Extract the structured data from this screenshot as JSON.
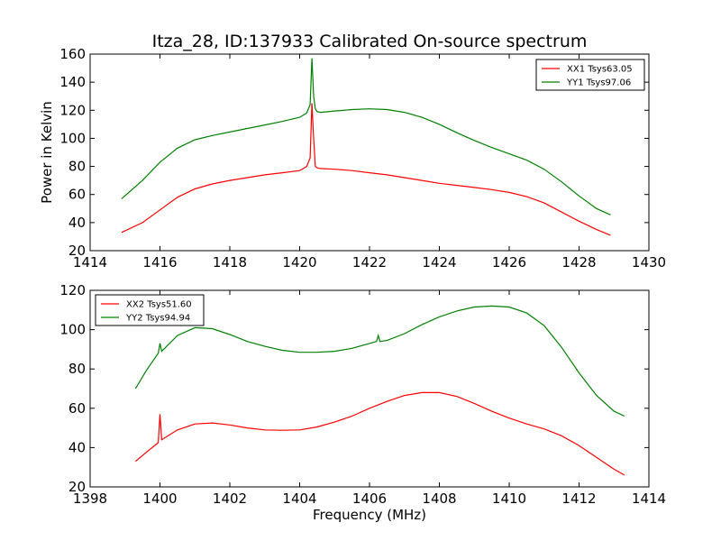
{
  "figure": {
    "title": "Itza_28, ID:137933 Calibrated On-source spectrum"
  },
  "chart_data": [
    {
      "type": "line",
      "title": "Itza_28, ID:137933 Calibrated On-source spectrum",
      "xlabel": "",
      "ylabel": "Power in Kelvin",
      "xlim": [
        1414,
        1430
      ],
      "ylim": [
        20,
        160
      ],
      "xticks": [
        1414,
        1416,
        1418,
        1420,
        1422,
        1424,
        1426,
        1428,
        1430
      ],
      "yticks": [
        20,
        40,
        60,
        80,
        100,
        120,
        140,
        160
      ],
      "xtick_labels": [
        "1414",
        "1416",
        "1418",
        "1420",
        "1422",
        "1424",
        "1426",
        "1428",
        "1430"
      ],
      "ytick_labels": [
        "20",
        "40",
        "60",
        "80",
        "100",
        "120",
        "140",
        "160"
      ],
      "grid": false,
      "legend_position": "top-right",
      "series": [
        {
          "name": "XX1 Tsys63.05",
          "color": "#ff0000",
          "x": [
            1414.9,
            1415.5,
            1416.0,
            1416.5,
            1417.0,
            1417.5,
            1418.0,
            1418.5,
            1419.0,
            1419.5,
            1420.0,
            1420.2,
            1420.3,
            1420.35,
            1420.4,
            1420.45,
            1420.5,
            1420.6,
            1421.0,
            1421.5,
            1422.0,
            1422.5,
            1423.0,
            1423.5,
            1424.0,
            1424.5,
            1425.0,
            1425.5,
            1426.0,
            1426.5,
            1427.0,
            1427.5,
            1428.0,
            1428.5,
            1428.9
          ],
          "y": [
            33,
            40,
            49,
            58,
            64,
            67.5,
            70,
            72,
            74,
            75.5,
            77,
            80,
            86,
            125,
            100,
            80,
            79,
            78.5,
            78,
            77,
            75.5,
            74,
            72,
            70,
            68,
            66.5,
            65,
            63.5,
            61.5,
            58.5,
            54,
            47.5,
            41,
            35,
            31
          ]
        },
        {
          "name": "YY1 Tsys97.06",
          "color": "#008000",
          "x": [
            1414.9,
            1415.5,
            1416.0,
            1416.5,
            1417.0,
            1417.5,
            1418.0,
            1418.5,
            1419.0,
            1419.5,
            1420.0,
            1420.2,
            1420.3,
            1420.35,
            1420.4,
            1420.45,
            1420.5,
            1420.6,
            1421.0,
            1421.5,
            1422.0,
            1422.5,
            1423.0,
            1423.5,
            1424.0,
            1424.5,
            1425.0,
            1425.5,
            1426.0,
            1426.5,
            1427.0,
            1427.5,
            1428.0,
            1428.5,
            1428.9
          ],
          "y": [
            57,
            70,
            83,
            93,
            99,
            102,
            104.5,
            107,
            109.5,
            112,
            115,
            118,
            124,
            157,
            130,
            121,
            119,
            118.5,
            119.5,
            120.5,
            121,
            120.5,
            118.5,
            115,
            110,
            104,
            98.5,
            93.5,
            89,
            84.5,
            78,
            69,
            59,
            50,
            45.5
          ]
        }
      ]
    },
    {
      "type": "line",
      "title": "",
      "xlabel": "Frequency (MHz)",
      "ylabel": "",
      "xlim": [
        1398,
        1414
      ],
      "ylim": [
        20,
        120
      ],
      "xticks": [
        1398,
        1400,
        1402,
        1404,
        1406,
        1408,
        1410,
        1412,
        1414
      ],
      "yticks": [
        20,
        40,
        60,
        80,
        100,
        120
      ],
      "xtick_labels": [
        "1398",
        "1400",
        "1402",
        "1404",
        "1406",
        "1408",
        "1410",
        "1412",
        "1414"
      ],
      "ytick_labels": [
        "20",
        "40",
        "60",
        "80",
        "100",
        "120"
      ],
      "grid": false,
      "legend_position": "top-left",
      "series": [
        {
          "name": "XX2 Tsys51.60",
          "color": "#ff0000",
          "x": [
            1399.3,
            1399.6,
            1399.95,
            1400.0,
            1400.05,
            1400.5,
            1401.0,
            1401.5,
            1402.0,
            1402.5,
            1403.0,
            1403.5,
            1404.0,
            1404.5,
            1405.0,
            1405.5,
            1406.0,
            1406.5,
            1407.0,
            1407.5,
            1408.0,
            1408.5,
            1409.0,
            1409.5,
            1410.0,
            1410.5,
            1411.0,
            1411.5,
            1412.0,
            1412.5,
            1413.0,
            1413.3
          ],
          "y": [
            33,
            37.5,
            42.5,
            57,
            44,
            49,
            52,
            52.5,
            51.5,
            50,
            49,
            48.8,
            49,
            50.5,
            53,
            56,
            60,
            63.5,
            66.5,
            68,
            68,
            66,
            62.5,
            58.5,
            55,
            52,
            49.5,
            46,
            41,
            35,
            29,
            26
          ]
        },
        {
          "name": "YY2 Tsys94.94",
          "color": "#008000",
          "x": [
            1399.3,
            1399.6,
            1399.95,
            1400.0,
            1400.05,
            1400.5,
            1401.0,
            1401.5,
            1402.0,
            1402.5,
            1403.0,
            1403.5,
            1404.0,
            1404.5,
            1405.0,
            1405.5,
            1406.0,
            1406.2,
            1406.25,
            1406.3,
            1406.5,
            1407.0,
            1407.5,
            1408.0,
            1408.5,
            1409.0,
            1409.5,
            1410.0,
            1410.5,
            1411.0,
            1411.5,
            1412.0,
            1412.5,
            1413.0,
            1413.3
          ],
          "y": [
            70,
            79,
            88,
            93,
            89,
            97,
            101,
            100.5,
            97.5,
            94,
            91.5,
            89.5,
            88.5,
            88.5,
            89,
            90.5,
            93,
            94,
            97,
            94,
            94.5,
            98,
            102.5,
            106.5,
            109.5,
            111.5,
            112,
            111.5,
            108.5,
            102,
            91,
            78,
            66.5,
            58.5,
            56
          ]
        }
      ]
    }
  ]
}
